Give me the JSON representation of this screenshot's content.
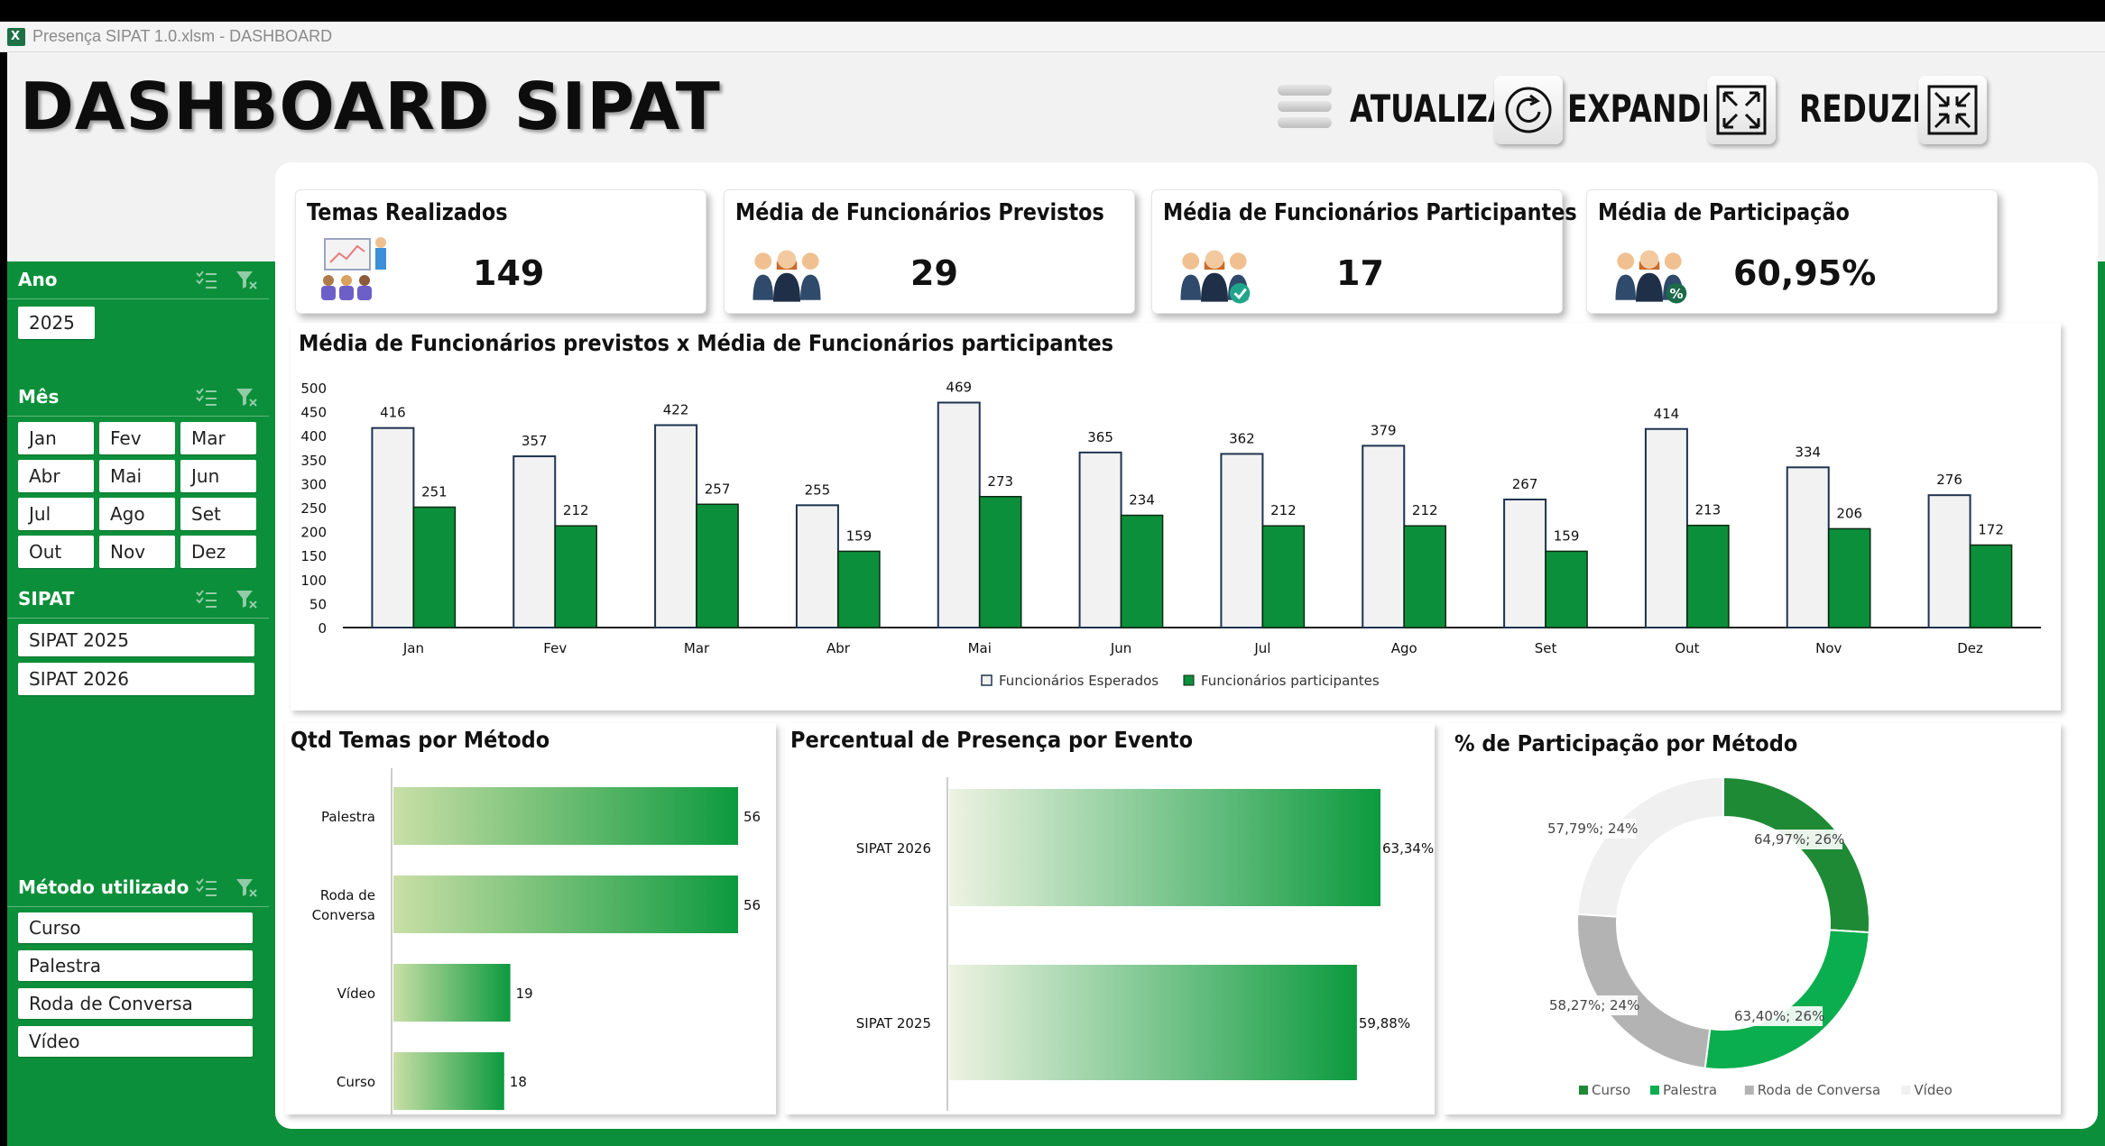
{
  "window": {
    "title": "Presença SIPAT 1.0.xlsm - DASHBOARD"
  },
  "header": {
    "title": "DASHBOARD SIPAT",
    "buttons": {
      "refresh": "ATUALIZAR",
      "expand": "EXPANDIR",
      "reduce": "REDUZIR"
    }
  },
  "kpis": [
    {
      "title": "Temas Realizados",
      "value": "149",
      "icon": "presentation-icon"
    },
    {
      "title": "Média de Funcionários Previstos",
      "value": "29",
      "icon": "people-icon"
    },
    {
      "title": "Média de Funcionários Participantes",
      "value": "17",
      "icon": "people-check-icon"
    },
    {
      "title": "Média de Participação",
      "value": "60,95%",
      "icon": "people-percent-icon"
    }
  ],
  "slicers": {
    "year": {
      "title": "Ano",
      "items": [
        "2025"
      ]
    },
    "month": {
      "title": "Mês",
      "items": [
        "Jan",
        "Fev",
        "Mar",
        "Abr",
        "Mai",
        "Jun",
        "Jul",
        "Ago",
        "Set",
        "Out",
        "Nov",
        "Dez"
      ]
    },
    "sipat": {
      "title": "SIPAT",
      "items": [
        "SIPAT 2025",
        "SIPAT 2026"
      ]
    },
    "method": {
      "title": "Método utilizado",
      "items": [
        "Curso",
        "Palestra",
        "Roda de Conversa",
        "Vídeo"
      ]
    }
  },
  "charts": {
    "monthly": {
      "title": "Média de Funcionários previstos x Média de Funcionários participantes"
    },
    "methods": {
      "title": "Qtd Temas por Método"
    },
    "events": {
      "title": "Percentual de Presença por Evento"
    },
    "donut": {
      "title": "% de Participação por Método"
    }
  },
  "chart_data": [
    {
      "type": "bar",
      "title": "Média de Funcionários previstos x Média de Funcionários participantes",
      "categories": [
        "Jan",
        "Fev",
        "Mar",
        "Abr",
        "Mai",
        "Jun",
        "Jul",
        "Ago",
        "Set",
        "Out",
        "Nov",
        "Dez"
      ],
      "series": [
        {
          "name": "Funcionários Esperados",
          "values": [
            416,
            357,
            422,
            255,
            469,
            365,
            362,
            379,
            267,
            414,
            334,
            276
          ],
          "color": "#f2f2f2"
        },
        {
          "name": "Funcionários participantes",
          "values": [
            251,
            212,
            257,
            159,
            273,
            234,
            212,
            212,
            159,
            213,
            206,
            172
          ],
          "color": "#0c8f3a"
        }
      ],
      "ylim": [
        0,
        500
      ],
      "yticks": [
        "0",
        "50",
        "100",
        "150",
        "200",
        "250",
        "300",
        "350",
        "400",
        "450",
        "500"
      ],
      "legend": "bottom"
    },
    {
      "type": "bar",
      "orientation": "horizontal",
      "title": "Qtd Temas por Método",
      "categories": [
        "Palestra",
        "Roda de Conversa",
        "Vídeo",
        "Curso"
      ],
      "category_lines": [
        [
          "Palestra"
        ],
        [
          "Roda de",
          "Conversa"
        ],
        [
          "Vídeo"
        ],
        [
          "Curso"
        ]
      ],
      "values": [
        56,
        56,
        19,
        18
      ],
      "xlim": [
        0,
        56
      ]
    },
    {
      "type": "bar",
      "orientation": "horizontal",
      "title": "Percentual de Presença por Evento",
      "categories": [
        "SIPAT 2026",
        "SIPAT 2025"
      ],
      "values": [
        63.34,
        59.88
      ],
      "labels": [
        "63,34%",
        "59,88%"
      ],
      "xlim": [
        0,
        63.34
      ]
    },
    {
      "type": "pie",
      "donut": true,
      "title": "% de Participação por Método",
      "slices": [
        {
          "name": "Curso",
          "share": 26,
          "label": "64,97%; 26%",
          "color": "#1e8a35"
        },
        {
          "name": "Palestra",
          "share": 26,
          "label": "63,40%; 26%",
          "color": "#0aae4e"
        },
        {
          "name": "Roda de Conversa",
          "share": 24,
          "label": "58,27%; 24%",
          "color": "#b3b3b3"
        },
        {
          "name": "Vídeo",
          "share": 24,
          "label": "57,79%; 24%",
          "color": "#f0f0f0"
        }
      ],
      "legend": "bottom"
    }
  ]
}
